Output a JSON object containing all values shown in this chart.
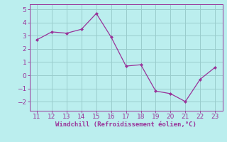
{
  "x": [
    11,
    12,
    13,
    14,
    15,
    16,
    17,
    18,
    19,
    20,
    21,
    22,
    23
  ],
  "y": [
    2.7,
    3.3,
    3.2,
    3.5,
    4.7,
    2.9,
    0.7,
    0.8,
    -1.2,
    -1.4,
    -2.0,
    -0.3,
    0.6
  ],
  "line_color": "#993399",
  "marker_color": "#993399",
  "bg_color": "#bbeeee",
  "grid_color": "#99cccc",
  "xlabel": "Windchill (Refroidissement éolien,°C)",
  "xlabel_color": "#993399",
  "tick_color": "#993399",
  "spine_color": "#993399",
  "ylim": [
    -2.7,
    5.4
  ],
  "xlim": [
    10.5,
    23.5
  ],
  "yticks": [
    -2,
    -1,
    0,
    1,
    2,
    3,
    4,
    5
  ],
  "xticks": [
    11,
    12,
    13,
    14,
    15,
    16,
    17,
    18,
    19,
    20,
    21,
    22,
    23
  ],
  "font_size": 6.5,
  "label_font_size": 6.5
}
